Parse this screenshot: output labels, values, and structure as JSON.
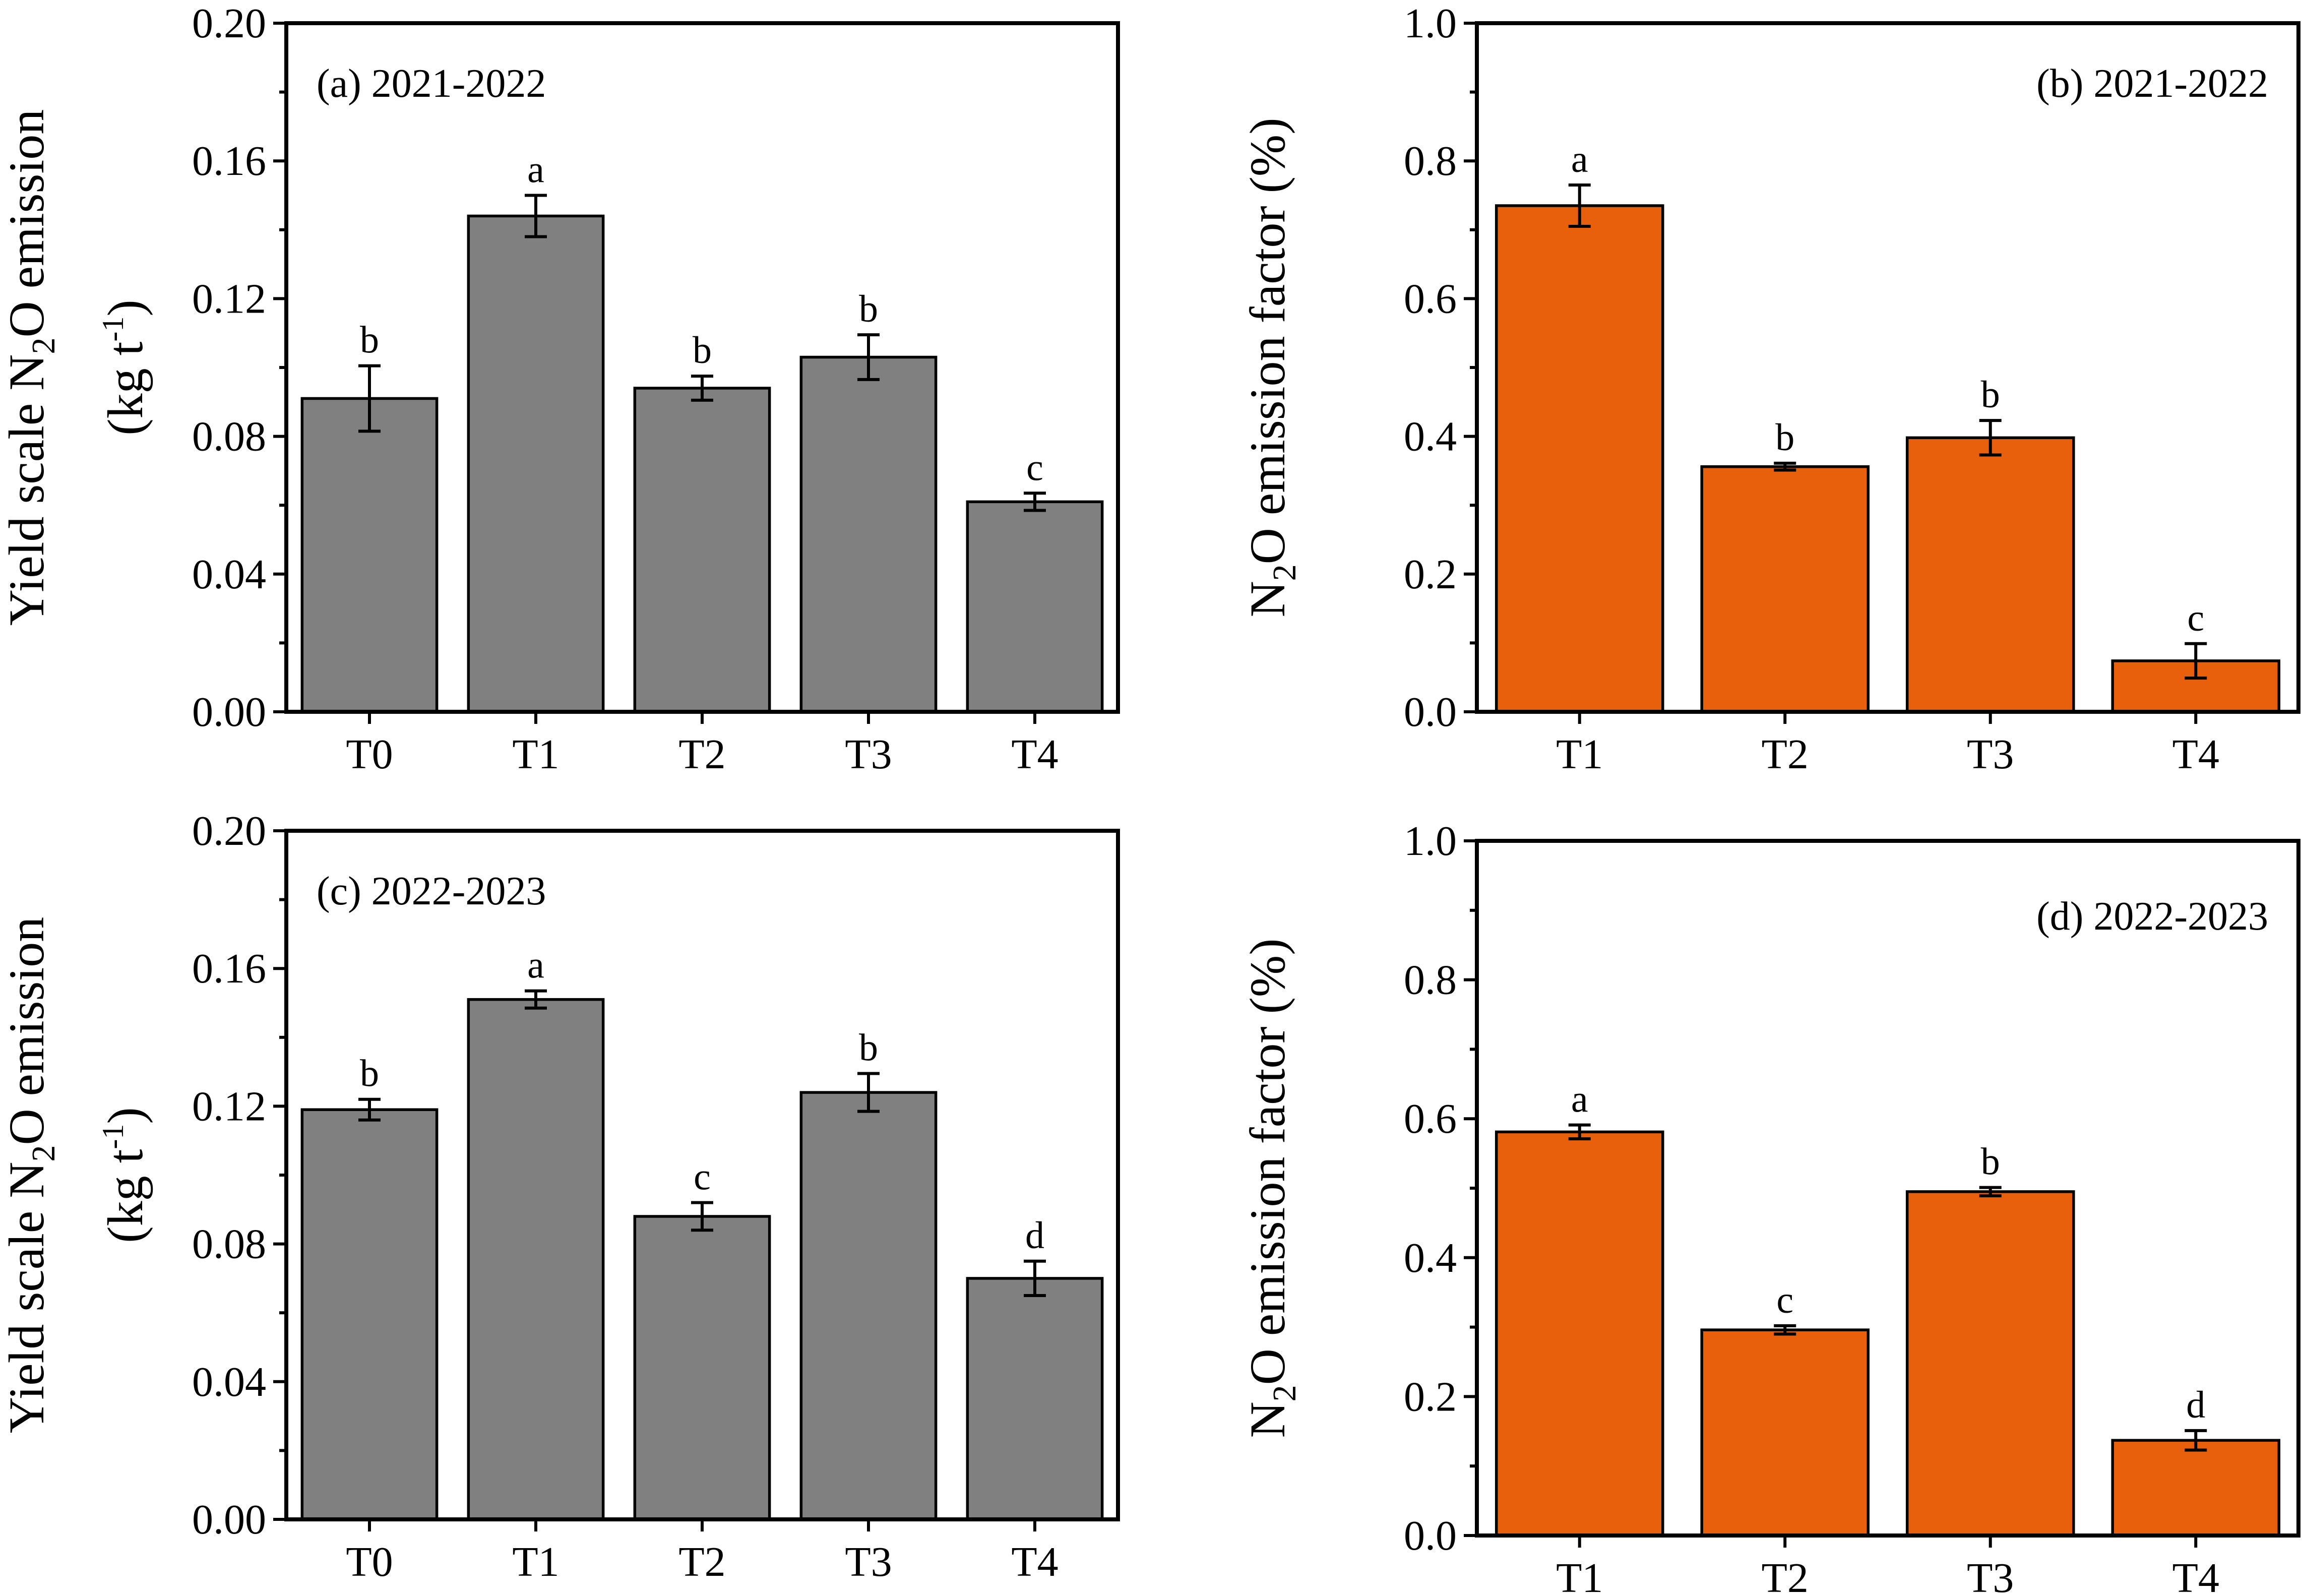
{
  "colors": {
    "gray_bar": "#808080",
    "orange_bar": "#e8600c",
    "axis": "#000000"
  },
  "chart_data": [
    {
      "id": "a",
      "type": "bar",
      "panel_label": "(a) 2021-2022",
      "categories": [
        "T0",
        "T1",
        "T2",
        "T3",
        "T4"
      ],
      "values": [
        0.091,
        0.144,
        0.094,
        0.103,
        0.061
      ],
      "errors": [
        0.0095,
        0.006,
        0.0035,
        0.0065,
        0.0025
      ],
      "significance": [
        "b",
        "a",
        "b",
        "b",
        "c"
      ],
      "ylabel": {
        "pre": "Yield scale N",
        "sub": "2",
        "post": "O emission"
      },
      "ylabel_unit": {
        "pre": "(kg t",
        "sup": "-1",
        "post": ")"
      },
      "ylim": [
        0,
        0.2
      ],
      "yticks": [
        "0.00",
        "0.04",
        "0.08",
        "0.12",
        "0.16",
        "0.20"
      ],
      "color": "#808080",
      "label_position": "top-left"
    },
    {
      "id": "b",
      "type": "bar",
      "panel_label": "(b) 2021-2022",
      "categories": [
        "T1",
        "T2",
        "T3",
        "T4"
      ],
      "values": [
        0.735,
        0.356,
        0.398,
        0.074
      ],
      "errors": [
        0.03,
        0.005,
        0.025,
        0.025
      ],
      "significance": [
        "a",
        "b",
        "b",
        "c"
      ],
      "ylabel": {
        "pre": "N",
        "sub": "2",
        "post": "O emission factor (%)"
      },
      "ylim": [
        0,
        1.0
      ],
      "yticks": [
        "0.0",
        "0.2",
        "0.4",
        "0.6",
        "0.8",
        "1.0"
      ],
      "color": "#e8600c",
      "label_position": "top-right"
    },
    {
      "id": "c",
      "type": "bar",
      "panel_label": "(c) 2022-2023",
      "categories": [
        "T0",
        "T1",
        "T2",
        "T3",
        "T4"
      ],
      "values": [
        0.119,
        0.151,
        0.088,
        0.124,
        0.07
      ],
      "errors": [
        0.003,
        0.0025,
        0.004,
        0.0055,
        0.005
      ],
      "significance": [
        "b",
        "a",
        "c",
        "b",
        "d"
      ],
      "ylabel": {
        "pre": "Yield scale N",
        "sub": "2",
        "post": "O emission"
      },
      "ylabel_unit": {
        "pre": "(kg t",
        "sup": "-1",
        "post": ")"
      },
      "ylim": [
        0,
        0.2
      ],
      "yticks": [
        "0.00",
        "0.04",
        "0.08",
        "0.12",
        "0.16",
        "0.20"
      ],
      "color": "#808080",
      "label_position": "top-left"
    },
    {
      "id": "d",
      "type": "bar",
      "panel_label": "(d) 2022-2023",
      "categories": [
        "T1",
        "T2",
        "T3",
        "T4"
      ],
      "values": [
        0.581,
        0.296,
        0.495,
        0.137
      ],
      "errors": [
        0.01,
        0.006,
        0.006,
        0.014
      ],
      "significance": [
        "a",
        "c",
        "b",
        "d"
      ],
      "ylabel": {
        "pre": "N",
        "sub": "2",
        "post": "O emission factor (%)"
      },
      "ylim": [
        0,
        1.0
      ],
      "yticks": [
        "0.0",
        "0.2",
        "0.4",
        "0.6",
        "0.8",
        "1.0"
      ],
      "color": "#e8600c",
      "label_position": "top-right"
    }
  ]
}
